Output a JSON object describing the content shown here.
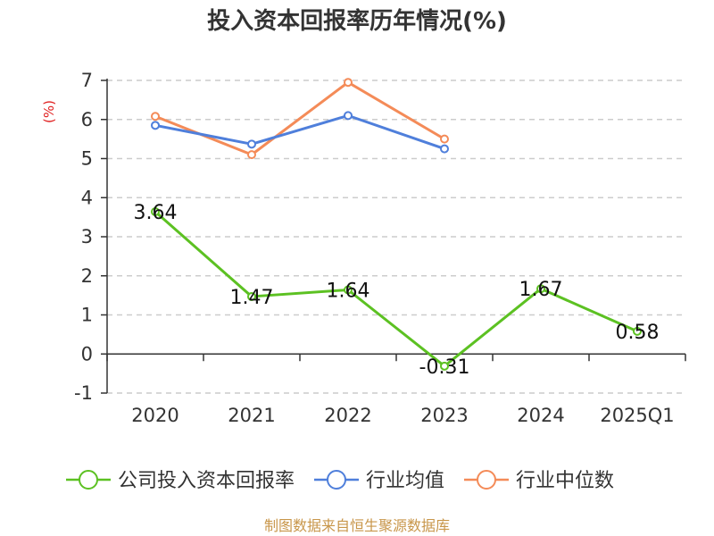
{
  "chart_data": {
    "type": "line",
    "title": "投入资本回报率历年情况(%)",
    "unit_label": "(%)",
    "categories": [
      "2020",
      "2021",
      "2022",
      "2023",
      "2024",
      "2025Q1"
    ],
    "ylim": [
      -1,
      7
    ],
    "yticks": [
      7,
      6,
      5,
      4,
      3,
      2,
      1,
      0,
      -1
    ],
    "grid": true,
    "legend_position": "bottom",
    "series": [
      {
        "name": "公司投入资本回报率",
        "color": "#5cc122",
        "values": [
          3.64,
          1.47,
          1.64,
          -0.31,
          1.67,
          0.58
        ],
        "labels": [
          "3.64",
          "1.47",
          "1.64",
          "-0.31",
          "1.67",
          "0.58"
        ]
      },
      {
        "name": "行业均值",
        "color": "#4f7fdb",
        "values": [
          5.85,
          5.37,
          6.1,
          5.25,
          null,
          null
        ]
      },
      {
        "name": "行业中位数",
        "color": "#f48b58",
        "values": [
          6.08,
          5.1,
          6.95,
          5.5,
          null,
          null
        ]
      }
    ],
    "source": "制图数据来自恒生聚源数据库"
  }
}
